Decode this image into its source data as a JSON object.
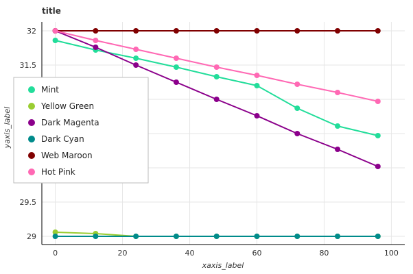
{
  "chart_data": {
    "type": "scatter",
    "title": "title",
    "xlabel": "xaxis_label",
    "ylabel": "yaxis_label",
    "xlim": [
      -4,
      104
    ],
    "ylim": [
      28.88,
      32.13
    ],
    "x_ticks": [
      0,
      20,
      40,
      60,
      80,
      100
    ],
    "y_ticks": [
      29,
      29.5,
      30,
      30.5,
      31,
      31.5,
      32
    ],
    "grid": true,
    "legend_position": "left",
    "x": [
      0,
      12,
      24,
      36,
      48,
      60,
      72,
      84,
      96
    ],
    "series": [
      {
        "name": "Mint",
        "color": "#22dd9a",
        "values": [
          31.86,
          31.72,
          31.6,
          31.47,
          31.33,
          31.2,
          30.87,
          30.61,
          30.47
        ]
      },
      {
        "name": "Yellow Green",
        "color": "#9acd32",
        "values": [
          29.06,
          29.04,
          29.0,
          29.0,
          29.0,
          29.0,
          29.0,
          29.0,
          29.0
        ]
      },
      {
        "name": "Dark Magenta",
        "color": "#8b008b",
        "values": [
          32.0,
          31.76,
          31.5,
          31.25,
          31.0,
          30.76,
          30.5,
          30.27,
          30.02
        ]
      },
      {
        "name": "Dark Cyan",
        "color": "#008b8b",
        "values": [
          29.0,
          29.0,
          29.0,
          29.0,
          29.0,
          29.0,
          29.0,
          29.0,
          29.0
        ]
      },
      {
        "name": "Web Maroon",
        "color": "#800000",
        "values": [
          32.0,
          32.0,
          32.0,
          32.0,
          32.0,
          32.0,
          32.0,
          32.0,
          32.0
        ]
      },
      {
        "name": "Hot Pink",
        "color": "#ff69b4",
        "values": [
          32.0,
          31.86,
          31.73,
          31.6,
          31.47,
          31.35,
          31.22,
          31.1,
          30.97
        ]
      }
    ]
  }
}
